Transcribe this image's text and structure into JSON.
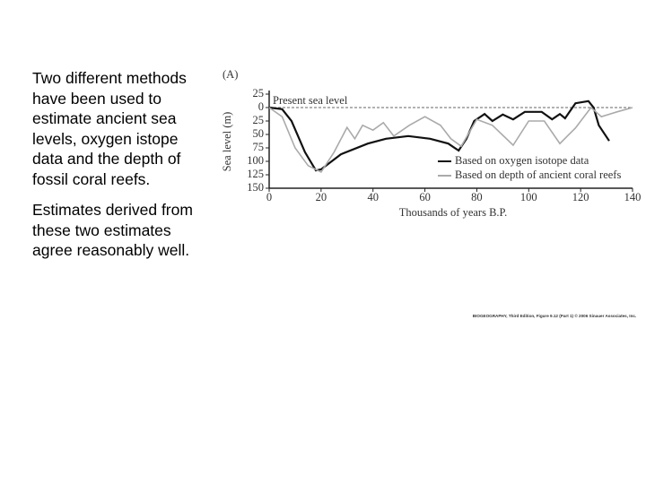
{
  "text": {
    "paragraphs": [
      "Two different methods have been used to estimate ancient sea levels, oxygen istope data and the depth of fossil coral reefs.",
      "Estimates derived from these two estimates agree reasonably well."
    ]
  },
  "chart_data": {
    "type": "line",
    "panel": "(A)",
    "ylabel": "Sea level (m)",
    "xlabel": "Thousands of years B.P.",
    "reference_label": "Present sea level",
    "credit": "BIOGEOGRAPHY, Third Edition, Figure 9.12 (Part 1) © 2006 Sinauer Associates, Inc.",
    "xlim": [
      0,
      140
    ],
    "xticks": [
      0,
      20,
      40,
      60,
      80,
      100,
      120,
      140
    ],
    "ylim": [
      -150,
      25
    ],
    "yticks": [
      {
        "value": 25,
        "label": "25"
      },
      0,
      {
        "value": -25,
        "label": "25"
      },
      {
        "value": -50,
        "label": "50"
      },
      {
        "value": -75,
        "label": "75"
      },
      {
        "value": -100,
        "label": "100"
      },
      {
        "value": -125,
        "label": "125"
      },
      {
        "value": -150,
        "label": "150"
      }
    ],
    "series": [
      {
        "name": "Based on oxygen isotope data",
        "color": "#111111",
        "x": [
          0,
          5,
          8.6,
          13.8,
          18,
          20,
          27.6,
          38,
          45,
          53.6,
          62,
          69,
          73,
          76,
          79,
          83,
          86,
          90,
          94,
          98.5,
          105,
          109,
          112,
          114,
          118,
          123,
          125,
          127,
          131
        ],
        "values": [
          0,
          -3,
          -25,
          -83,
          -117,
          -115,
          -87,
          -67,
          -58,
          -53,
          -58,
          -67,
          -80,
          -58,
          -25,
          -12,
          -25,
          -13,
          -22,
          -8,
          -8,
          -22,
          -12,
          -20,
          8,
          12,
          0,
          -33,
          -62
        ]
      },
      {
        "name": "Based on depth of ancient coral reefs",
        "color": "#aaaaaa",
        "x": [
          0,
          5,
          10,
          15,
          20,
          25,
          30,
          33,
          36,
          40,
          44,
          48,
          54,
          60,
          66,
          70,
          74,
          80,
          86,
          94,
          100,
          106,
          112,
          118,
          124,
          128,
          134,
          140
        ],
        "values": [
          0,
          -17,
          -75,
          -108,
          -120,
          -83,
          -37,
          -58,
          -33,
          -42,
          -28,
          -53,
          -33,
          -17,
          -33,
          -58,
          -72,
          -22,
          -33,
          -70,
          -25,
          -25,
          -67,
          -38,
          0,
          -17,
          -8,
          0
        ]
      }
    ]
  }
}
